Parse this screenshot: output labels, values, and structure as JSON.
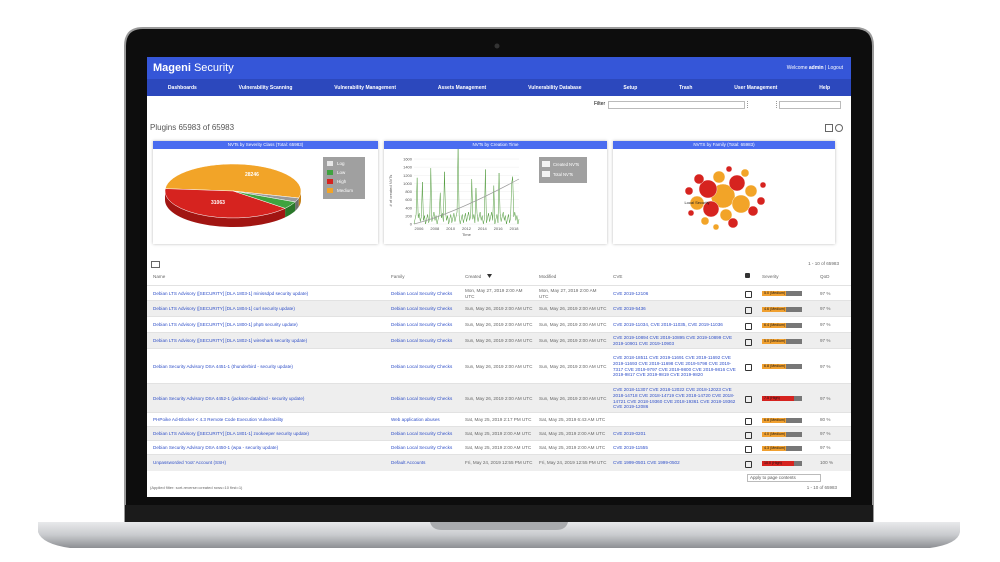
{
  "header": {
    "brand_bold": "Mageni",
    "brand": "Security",
    "welcome": "Welcome",
    "user": "admin",
    "logout": "Logout"
  },
  "nav": [
    "Dashboards",
    "Vulnerability Scanning",
    "Vulnerability Management",
    "Assets Management",
    "Vulnerability Database",
    "Setup",
    "Trash",
    "User Management",
    "Help"
  ],
  "filter_label": "Filter",
  "plugins_count": "Plugins 65983 of 65983",
  "panels": [
    {
      "title": "NVTs by Severity Class (Total: 65983)",
      "legend": [
        "Log",
        "Low",
        "High",
        "Medium"
      ],
      "slice_labels": [
        "28246",
        "31063"
      ]
    },
    {
      "title": "NVTs by Creation Time",
      "y_label": "# of created NVTs",
      "x_label": "Time",
      "yticks": [
        "0",
        "200",
        "400",
        "600",
        "800",
        "1000",
        "1200",
        "1400",
        "1600"
      ],
      "xticks": [
        "2006",
        "2008",
        "2010",
        "2012",
        "2014",
        "2016",
        "2018"
      ],
      "legend": [
        "Created NVTs",
        "Total NVTs"
      ]
    },
    {
      "title": "NVTS by Family (Total: 65983)",
      "bubble_label": "Local Security"
    }
  ],
  "pagination_top": "1 - 10 of 65983",
  "table": {
    "columns": [
      "Name",
      "Family",
      "Created",
      "Modified",
      "CVE",
      "Severity",
      "QoD"
    ],
    "rows": [
      {
        "name": "Debian LTS Advisory ([SECURITY] [DLA 1803-1] minissdpd security update)",
        "family": "Debian Local Security Checks",
        "created": "Mon, May 27, 2019 2:00 AM UTC",
        "modified": "Mon, May 27, 2019 2:00 AM UTC",
        "cve": "CVE 2019-12106",
        "severity": "5.0 (Medium)",
        "qod": "97 %"
      },
      {
        "name": "Debian LTS Advisory ([SECURITY] [DLA 1804-1] curl security update)",
        "family": "Debian Local Security Checks",
        "created": "Sun, May 26, 2019 2:00 AM UTC",
        "modified": "Sun, May 26, 2019 2:00 AM UTC",
        "cve": "CVE 2019-5436",
        "severity": "4.6 (Medium)",
        "qod": "97 %"
      },
      {
        "name": "Debian LTS Advisory ([SECURITY] [DLA 1800-1] php5 security update)",
        "family": "Debian Local Security Checks",
        "created": "Sun, May 26, 2019 2:00 AM UTC",
        "modified": "Sun, May 26, 2019 2:00 AM UTC",
        "cve": "CVE 2019-11034, CVE 2019-11035, CVE 2019-11036",
        "severity": "6.4 (Medium)",
        "qod": "97 %"
      },
      {
        "name": "Debian LTS Advisory ([SECURITY] [DLA 1802-1] wireshark security update)",
        "family": "Debian Local Security Checks",
        "created": "Sun, May 26, 2019 2:00 AM UTC",
        "modified": "Sun, May 26, 2019 2:00 AM UTC",
        "cve": "CVE 2019-10894 CVE 2019-10895 CVE 2019-10899 CVE 2019-10901 CVE 2019-10903",
        "severity": "5.0 (Medium)",
        "qod": "97 %"
      },
      {
        "name": "Debian Security Advisory DSA 4451-1 (thunderbird - security update)",
        "family": "Debian Local Security Checks",
        "created": "Sun, May 26, 2019 2:00 AM UTC",
        "modified": "Sun, May 26, 2019 2:00 AM UTC",
        "cve": "CVE 2018-18511 CVE 2019-11691 CVE 2019-11692 CVE 2019-11693 CVE 2019-11698 CVE 2019-5798 CVE 2019-7317 CVE 2019-9797 CVE 2019-9800 CVE 2019-9816 CVE 2019-9817 CVE 2019-9819 CVE 2019-9820",
        "severity": "6.8 (Medium)",
        "qod": "97 %"
      },
      {
        "name": "Debian Security Advisory DSA 4452-1 (jackson-databind - security update)",
        "family": "Debian Local Security Checks",
        "created": "Sun, May 26, 2019 2:00 AM UTC",
        "modified": "Sun, May 26, 2019 2:00 AM UTC",
        "cve": "CVE 2018-11307 CVE 2018-12022 CVE 2018-12023 CVE 2018-14718 CVE 2018-14719 CVE 2018-14720 CVE 2018-14721 CVE 2018-19360 CVE 2018-19361 CVE 2018-19362 CVE 2019-12086",
        "severity": "7.5 (High)",
        "qod": "97 %"
      },
      {
        "name": "PHPoike Ad-Blocker < 4.3 Remote Code Execution Vulnerability",
        "family": "Web application abuses",
        "created": "Sat, May 25, 2019 2:17 PM UTC",
        "modified": "Sat, May 25, 2019 6:43 AM UTC",
        "severity": "6.8 (Medium)",
        "qod": "80 %"
      },
      {
        "name": "Debian LTS Advisory ([SECURITY] [DLA 1801-1] zookeeper security update)",
        "family": "Debian Local Security Checks",
        "created": "Sat, May 25, 2019 2:00 AM UTC",
        "modified": "Sat, May 25, 2019 2:00 AM UTC",
        "cve": "CVE 2019-0201",
        "severity": "4.0 (Medium)",
        "qod": "97 %"
      },
      {
        "name": "Debian Security Advisory DSA 4450-1 (wpa - security update)",
        "family": "Debian Local Security Checks",
        "created": "Sat, May 25, 2019 2:00 AM UTC",
        "modified": "Sat, May 25, 2019 2:00 AM UTC",
        "cve": "CVE 2019-11555",
        "severity": "4.3 (Medium)",
        "qod": "97 %"
      },
      {
        "name": "Unpassworded 'root' Account (SSH)",
        "family": "Default Accounts",
        "created": "Fri, May 24, 2019 12:55 PM UTC",
        "modified": "Fri, May 24, 2019 12:55 PM UTC",
        "cve": "CVE 1999-0501 CVE 1999-0502",
        "severity": "10.0 (High)",
        "qod": "100 %"
      }
    ]
  },
  "footer": {
    "bulk_action": "Apply to page contents",
    "pagination": "1 - 10 of 65983",
    "applied_filter": "(Applied filter: sort-reverse=created rows=10 first=1)"
  }
}
